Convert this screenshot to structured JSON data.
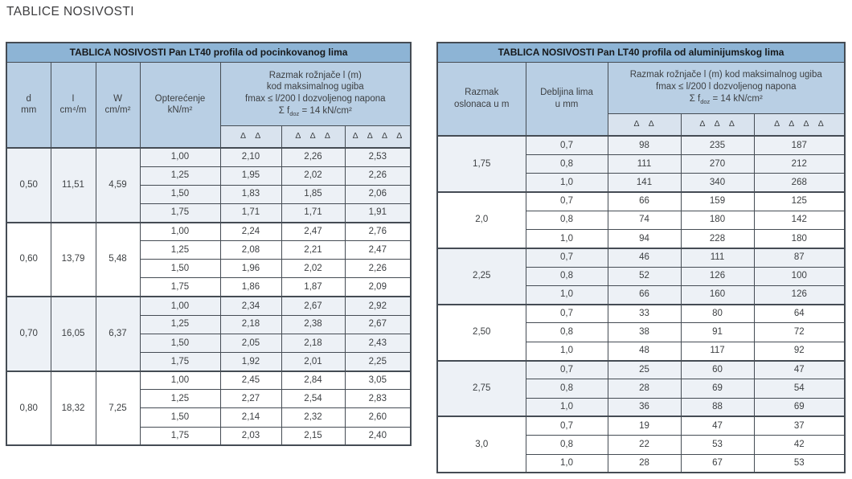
{
  "page_title": "TABLICE NOSIVOSTI",
  "colors": {
    "title-bg": "#8db4d5",
    "head-bg": "#b9cfe4",
    "sub-bg": "#d9e3ee",
    "shade-bg": "#edf1f6",
    "border": "#454c54",
    "text": "#3d4043",
    "title-text": "#16181a"
  },
  "left_table": {
    "title": "TABLICA NOSIVOSTI Pan LT40 profila od pocinkovanog lima",
    "col_headers": {
      "d": {
        "top": "d",
        "bottom": "mm"
      },
      "i": {
        "top": "I",
        "bottom": "cm⁴/m"
      },
      "w": {
        "top": "W",
        "bottom": "cm/m²"
      },
      "load": {
        "top": "Opterećenje",
        "bottom": "kN/m²"
      }
    },
    "span_header": {
      "line1": "Razmak rožnjače l (m)",
      "line2": "kod maksimalnog ugiba",
      "line3": "fmax ≤ l/200 l dozvoljenog napona",
      "formula_pre": "Σ f",
      "formula_sub": "doz",
      "formula_post": " = 14 kN/cm²"
    },
    "delta_headers": [
      "Δ Δ",
      "Δ Δ Δ",
      "Δ Δ Δ Δ"
    ],
    "groups": [
      {
        "d": "0,50",
        "i": "11,51",
        "w": "4,59",
        "rows": [
          {
            "load": "1,00",
            "v": [
              "2,10",
              "2,26",
              "2,53"
            ]
          },
          {
            "load": "1,25",
            "v": [
              "1,95",
              "2,02",
              "2,26"
            ]
          },
          {
            "load": "1,50",
            "v": [
              "1,83",
              "1,85",
              "2,06"
            ]
          },
          {
            "load": "1,75",
            "v": [
              "1,71",
              "1,71",
              "1,91"
            ]
          }
        ]
      },
      {
        "d": "0,60",
        "i": "13,79",
        "w": "5,48",
        "rows": [
          {
            "load": "1,00",
            "v": [
              "2,24",
              "2,47",
              "2,76"
            ]
          },
          {
            "load": "1,25",
            "v": [
              "2,08",
              "2,21",
              "2,47"
            ]
          },
          {
            "load": "1,50",
            "v": [
              "1,96",
              "2,02",
              "2,26"
            ]
          },
          {
            "load": "1,75",
            "v": [
              "1,86",
              "1,87",
              "2,09"
            ]
          }
        ]
      },
      {
        "d": "0,70",
        "i": "16,05",
        "w": "6,37",
        "rows": [
          {
            "load": "1,00",
            "v": [
              "2,34",
              "2,67",
              "2,92"
            ]
          },
          {
            "load": "1,25",
            "v": [
              "2,18",
              "2,38",
              "2,67"
            ]
          },
          {
            "load": "1,50",
            "v": [
              "2,05",
              "2,18",
              "2,43"
            ]
          },
          {
            "load": "1,75",
            "v": [
              "1,92",
              "2,01",
              "2,25"
            ]
          }
        ]
      },
      {
        "d": "0,80",
        "i": "18,32",
        "w": "7,25",
        "rows": [
          {
            "load": "1,00",
            "v": [
              "2,45",
              "2,84",
              "3,05"
            ]
          },
          {
            "load": "1,25",
            "v": [
              "2,27",
              "2,54",
              "2,83"
            ]
          },
          {
            "load": "1,50",
            "v": [
              "2,14",
              "2,32",
              "2,60"
            ]
          },
          {
            "load": "1,75",
            "v": [
              "2,03",
              "2,15",
              "2,40"
            ]
          }
        ]
      }
    ]
  },
  "right_table": {
    "title": "TABLICA NOSIVOSTI Pan LT40 profila od aluminijumskog lima",
    "col_headers": {
      "span": {
        "top": "Razmak",
        "bottom": "oslonaca u m"
      },
      "thickness": {
        "top": "Debljina lima",
        "bottom": "u mm"
      }
    },
    "span_header": {
      "line1": "Razmak rožnjače l (m) kod maksimalnog ugiba",
      "line2": "fmax ≤ l/200 l dozvoljenog napona",
      "formula_pre": "Σ f",
      "formula_sub": "doz",
      "formula_post": " = 14 kN/cm²"
    },
    "delta_headers": [
      "Δ Δ",
      "Δ Δ Δ",
      "Δ Δ Δ Δ"
    ],
    "groups": [
      {
        "span": "1,75",
        "rows": [
          {
            "t": "0,7",
            "v": [
              "98",
              "235",
              "187"
            ]
          },
          {
            "t": "0,8",
            "v": [
              "111",
              "270",
              "212"
            ]
          },
          {
            "t": "1,0",
            "v": [
              "141",
              "340",
              "268"
            ]
          }
        ]
      },
      {
        "span": "2,0",
        "rows": [
          {
            "t": "0,7",
            "v": [
              "66",
              "159",
              "125"
            ]
          },
          {
            "t": "0,8",
            "v": [
              "74",
              "180",
              "142"
            ]
          },
          {
            "t": "1,0",
            "v": [
              "94",
              "228",
              "180"
            ]
          }
        ]
      },
      {
        "span": "2,25",
        "rows": [
          {
            "t": "0,7",
            "v": [
              "46",
              "111",
              "87"
            ]
          },
          {
            "t": "0,8",
            "v": [
              "52",
              "126",
              "100"
            ]
          },
          {
            "t": "1,0",
            "v": [
              "66",
              "160",
              "126"
            ]
          }
        ]
      },
      {
        "span": "2,50",
        "rows": [
          {
            "t": "0,7",
            "v": [
              "33",
              "80",
              "64"
            ]
          },
          {
            "t": "0,8",
            "v": [
              "38",
              "91",
              "72"
            ]
          },
          {
            "t": "1,0",
            "v": [
              "48",
              "117",
              "92"
            ]
          }
        ]
      },
      {
        "span": "2,75",
        "rows": [
          {
            "t": "0,7",
            "v": [
              "25",
              "60",
              "47"
            ]
          },
          {
            "t": "0,8",
            "v": [
              "28",
              "69",
              "54"
            ]
          },
          {
            "t": "1,0",
            "v": [
              "36",
              "88",
              "69"
            ]
          }
        ]
      },
      {
        "span": "3,0",
        "rows": [
          {
            "t": "0,7",
            "v": [
              "19",
              "47",
              "37"
            ]
          },
          {
            "t": "0,8",
            "v": [
              "22",
              "53",
              "42"
            ]
          },
          {
            "t": "1,0",
            "v": [
              "28",
              "67",
              "53"
            ]
          }
        ]
      }
    ]
  }
}
